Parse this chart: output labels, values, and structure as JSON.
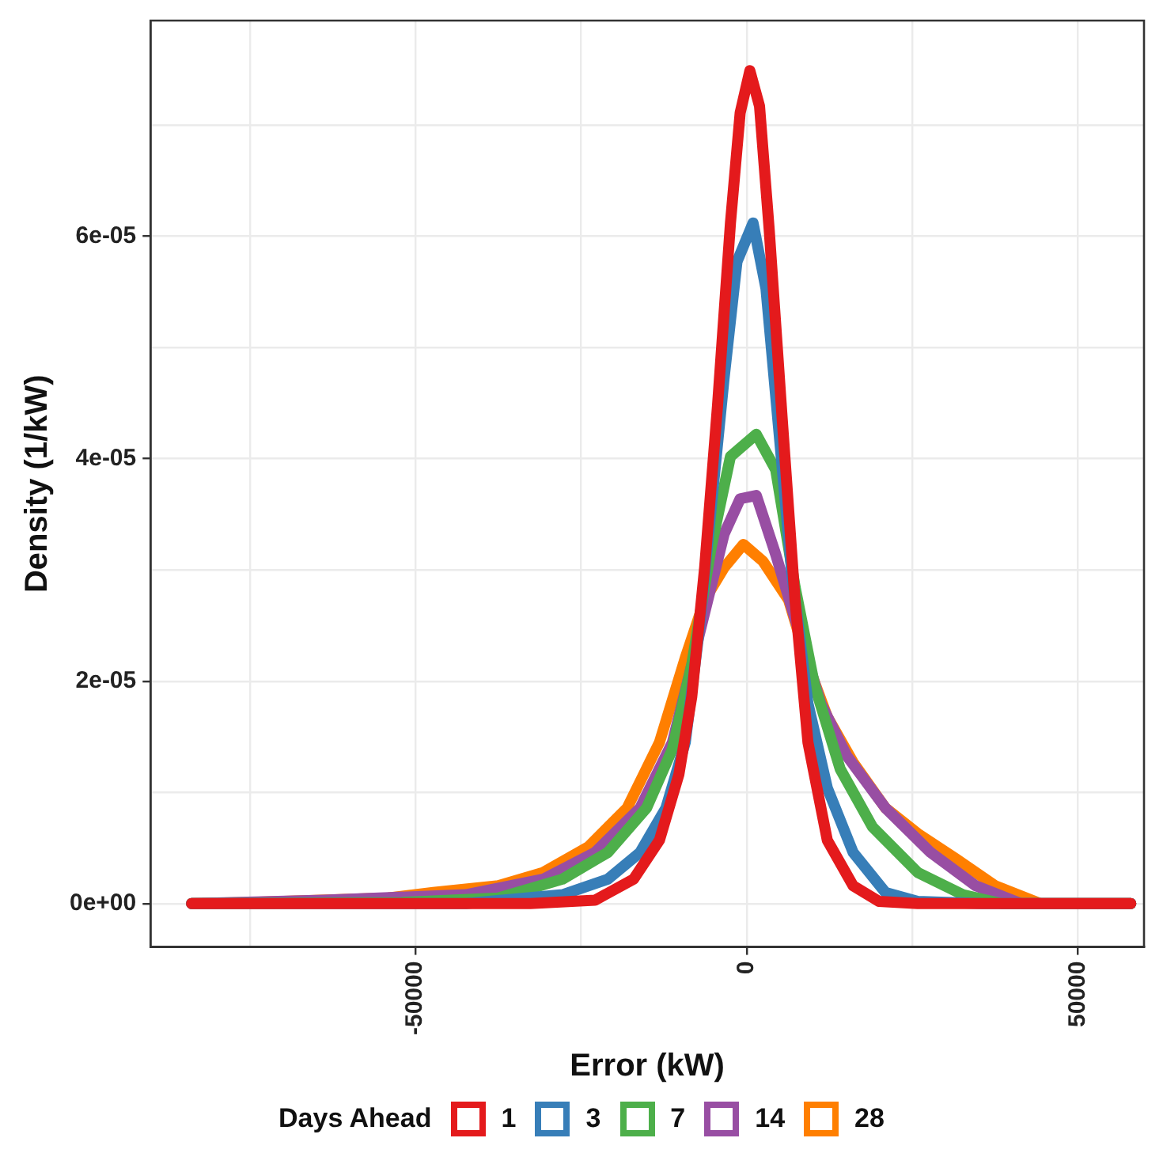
{
  "chart_data": {
    "type": "line",
    "xlabel": "Error (kW)",
    "ylabel": "Density (1/kW)",
    "legend_title": "Days Ahead",
    "legend": "bottom",
    "grid": true,
    "marker": "none",
    "line_style": "solid",
    "xlim": [
      -90000,
      60000
    ],
    "ylim": [
      -3.9e-06,
      7.94e-05
    ],
    "xticks": [
      {
        "value": -75000,
        "label": null
      },
      -50000,
      {
        "value": -25000,
        "label": null
      },
      0,
      {
        "value": 25000,
        "label": null
      },
      50000
    ],
    "yticks": [
      {
        "value": 0,
        "label": "0e+00"
      },
      {
        "value": 1e-05,
        "label": null
      },
      {
        "value": 2e-05,
        "label": "2e-05"
      },
      {
        "value": 3e-05,
        "label": null
      },
      {
        "value": 4e-05,
        "label": "4e-05"
      },
      {
        "value": 5e-05,
        "label": null
      },
      {
        "value": 6e-05,
        "label": "6e-05"
      },
      {
        "value": 7e-05,
        "label": null
      }
    ],
    "series": [
      {
        "name": "1",
        "color": "#e41a1c",
        "x": [
          -83800,
          -32650,
          -22900,
          -17060,
          -13160,
          -10230,
          -8280,
          -6340,
          -4390,
          -2440,
          -975,
          490,
          1950,
          3410,
          5360,
          7310,
          9260,
          12180,
          16080,
          19980,
          25830,
          58000
        ],
        "values": [
          0,
          0,
          3e-07,
          2.2e-06,
          5.7e-06,
          1.16e-05,
          1.86e-05,
          3.02e-05,
          4.48e-05,
          6.12e-05,
          7.11e-05,
          7.49e-05,
          7.17e-05,
          6.06e-05,
          4.37e-05,
          2.73e-05,
          1.45e-05,
          5.7e-06,
          1.6e-06,
          2e-07,
          0,
          0
        ]
      },
      {
        "name": "3",
        "color": "#377eb8",
        "x": [
          -83800,
          -42400,
          -27800,
          -20950,
          -16080,
          -12180,
          -9260,
          -7310,
          -5360,
          -3410,
          -1460,
          975,
          2920,
          4870,
          6820,
          9260,
          12180,
          16080,
          20960,
          25830,
          35570,
          58000
        ],
        "values": [
          0,
          0,
          8e-07,
          2.2e-06,
          4.6e-06,
          8.6e-06,
          1.45e-05,
          2.38e-05,
          3.55e-05,
          4.72e-05,
          5.77e-05,
          6.12e-05,
          5.53e-05,
          4.25e-05,
          2.97e-05,
          1.8e-05,
          1.04e-05,
          4.6e-06,
          1e-06,
          2e-07,
          0,
          0
        ]
      },
      {
        "name": "7",
        "color": "#4daf4a",
        "x": [
          -83800,
          -52100,
          -37500,
          -27800,
          -20950,
          -15100,
          -11200,
          -8280,
          -5360,
          -2440,
          1460,
          4390,
          7310,
          10230,
          14130,
          19000,
          25830,
          32650,
          38500,
          58000
        ],
        "values": [
          0,
          1e-07,
          5e-07,
          2.2e-06,
          4.6e-06,
          8.6e-06,
          1.39e-05,
          2.15e-05,
          3.2e-05,
          4.02e-05,
          4.22e-05,
          3.9e-05,
          2.85e-05,
          1.97e-05,
          1.21e-05,
          6.9e-06,
          2.8e-06,
          8e-07,
          0,
          0
        ]
      },
      {
        "name": "14",
        "color": "#984ea3",
        "x": [
          -83800,
          -63800,
          -42400,
          -30700,
          -22900,
          -16080,
          -11200,
          -7310,
          -3410,
          -975,
          1460,
          4390,
          7310,
          11210,
          15110,
          20960,
          27780,
          34600,
          41430,
          58000
        ],
        "values": [
          0,
          3e-07,
          8e-07,
          2.2e-06,
          4.6e-06,
          8.6e-06,
          1.45e-05,
          2.38e-05,
          3.32e-05,
          3.64e-05,
          3.67e-05,
          3.14e-05,
          2.56e-05,
          1.8e-05,
          1.33e-05,
          8.6e-06,
          4.6e-06,
          1.6e-06,
          0,
          0
        ]
      },
      {
        "name": "28",
        "color": "#ff7f00",
        "x": [
          -83800,
          -75500,
          -54100,
          -47300,
          -37500,
          -30700,
          -23900,
          -18030,
          -13160,
          -9260,
          -6340,
          -3410,
          -490,
          2440,
          6340,
          9260,
          12180,
          16080,
          20960,
          25830,
          31680,
          37530,
          44350,
          58000
        ],
        "values": [
          0,
          1e-07,
          5e-07,
          1e-06,
          1.6e-06,
          2.8e-06,
          5.1e-06,
          8.6e-06,
          1.45e-05,
          2.21e-05,
          2.73e-05,
          3.02e-05,
          3.23e-05,
          3.08e-05,
          2.73e-05,
          2.15e-05,
          1.68e-05,
          1.27e-05,
          8.6e-06,
          6.3e-06,
          4e-06,
          1.6e-06,
          0,
          0
        ]
      }
    ]
  }
}
